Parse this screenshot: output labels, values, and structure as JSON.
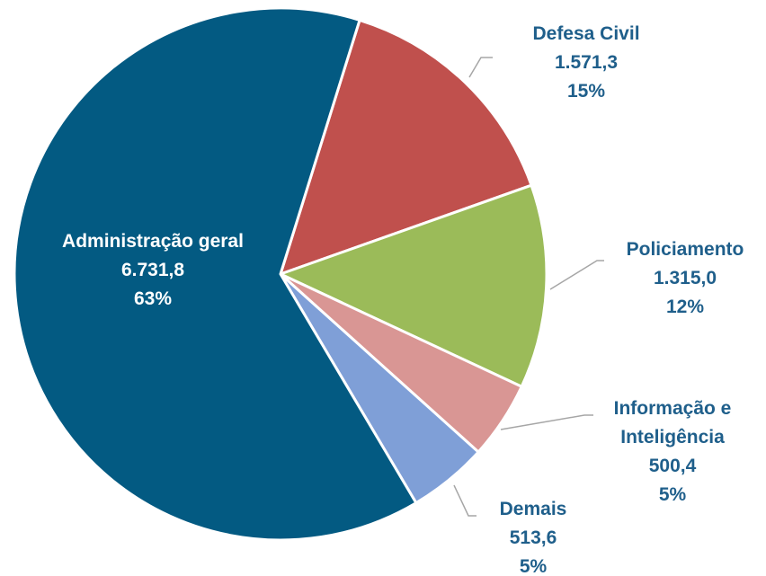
{
  "chart_data": {
    "type": "pie",
    "categories": [
      "Defesa Civil",
      "Policiamento",
      "Informação e Inteligência",
      "Demais",
      "Administração geral"
    ],
    "values": [
      1571.3,
      1315.0,
      500.4,
      513.6,
      6731.8
    ],
    "value_labels": [
      "1.571,3",
      "1.315,0",
      "500,4",
      "513,6",
      "6.731,8"
    ],
    "percents": [
      15,
      12,
      5,
      5,
      63
    ],
    "percent_labels": [
      "15%",
      "12%",
      "5%",
      "5%",
      "63%"
    ],
    "colors": [
      "#c0504d",
      "#9bbb59",
      "#d99694",
      "#7f9fd7",
      "#035a82"
    ]
  }
}
